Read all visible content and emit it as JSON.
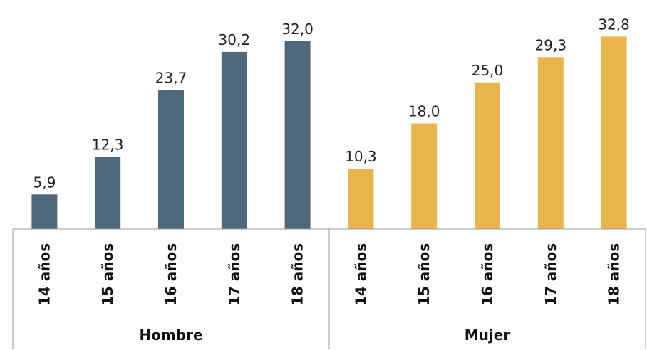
{
  "chart_data": {
    "type": "bar",
    "title": "",
    "xlabel": "",
    "ylabel": "",
    "ylim": [
      0,
      35
    ],
    "grid": false,
    "legend": "none",
    "groups": [
      {
        "name": "Hombre",
        "color": "#4f697c",
        "categories": [
          "14 años",
          "15 años",
          "16 años",
          "17 años",
          "18 años"
        ],
        "values": [
          5.9,
          12.3,
          23.7,
          30.2,
          32.0
        ],
        "value_labels": [
          "5,9",
          "12,3",
          "23,7",
          "30,2",
          "32,0"
        ]
      },
      {
        "name": "Mujer",
        "color": "#e8b54a",
        "categories": [
          "14 años",
          "15 años",
          "16 años",
          "17 años",
          "18 años"
        ],
        "values": [
          10.3,
          18.0,
          25.0,
          29.3,
          32.8
        ],
        "value_labels": [
          "10,3",
          "18,0",
          "25,0",
          "29,3",
          "32,8"
        ]
      }
    ]
  }
}
